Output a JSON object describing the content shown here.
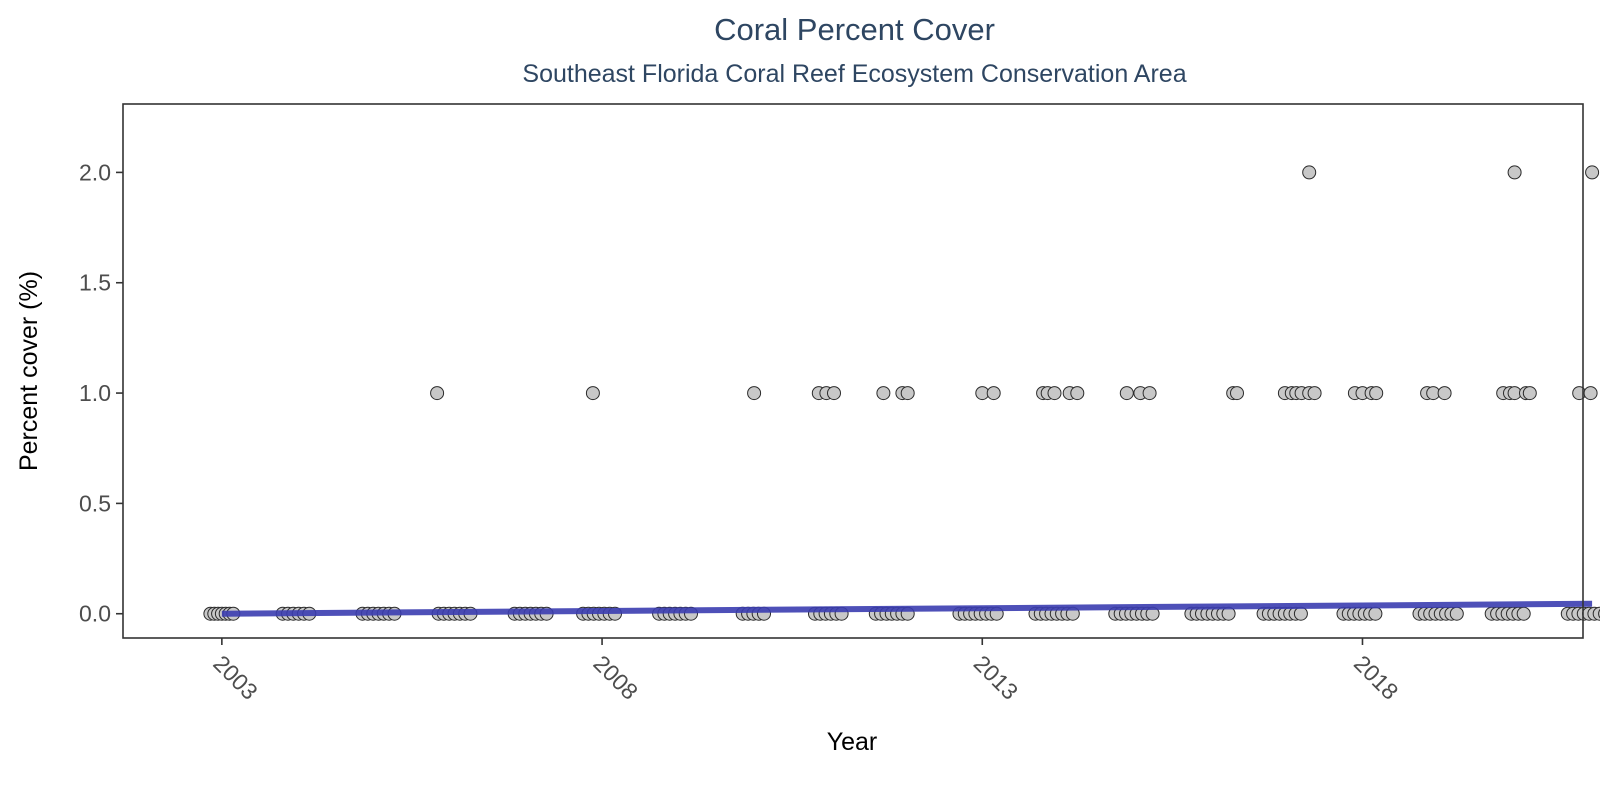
{
  "chart_data": {
    "type": "scatter",
    "title": "Coral Percent Cover",
    "subtitle": "Southeast Florida Coral Reef Ecosystem Conservation Area",
    "xlabel": "Year",
    "ylabel": "Percent cover (%)",
    "xlim": [
      2001.7,
      2020.9
    ],
    "ylim": [
      -0.11,
      2.31
    ],
    "x_ticks": [
      2003,
      2008,
      2013,
      2018
    ],
    "x_tick_labels": [
      "2003",
      "2008",
      "2013",
      "2018"
    ],
    "y_ticks": [
      0,
      0.5,
      1,
      1.5,
      2
    ],
    "y_tick_labels": [
      "0.0",
      "0.5",
      "1.0",
      "1.5",
      "2.0"
    ],
    "grid": false,
    "legend": "none",
    "point_color": "#c8c8c8",
    "point_edge_color": "#2a2a2a",
    "trend_color": "#3b3db0",
    "series": [
      {
        "values": [
          {
            "x": 2002.85,
            "y": 0
          },
          {
            "x": 2002.9,
            "y": 0
          },
          {
            "x": 2002.95,
            "y": 0
          },
          {
            "x": 2003.0,
            "y": 0
          },
          {
            "x": 2003.05,
            "y": 0
          },
          {
            "x": 2003.1,
            "y": 0
          },
          {
            "x": 2003.15,
            "y": 0
          },
          {
            "x": 2003.8,
            "y": 0
          },
          {
            "x": 2003.87,
            "y": 0
          },
          {
            "x": 2003.94,
            "y": 0
          },
          {
            "x": 2004.01,
            "y": 0
          },
          {
            "x": 2004.08,
            "y": 0
          },
          {
            "x": 2004.15,
            "y": 0
          },
          {
            "x": 2004.85,
            "y": 0
          },
          {
            "x": 2004.92,
            "y": 0
          },
          {
            "x": 2004.99,
            "y": 0
          },
          {
            "x": 2005.06,
            "y": 0
          },
          {
            "x": 2005.13,
            "y": 0
          },
          {
            "x": 2005.2,
            "y": 0
          },
          {
            "x": 2005.27,
            "y": 0
          },
          {
            "x": 2005.85,
            "y": 0
          },
          {
            "x": 2005.92,
            "y": 0
          },
          {
            "x": 2005.99,
            "y": 0
          },
          {
            "x": 2006.06,
            "y": 0
          },
          {
            "x": 2006.13,
            "y": 0
          },
          {
            "x": 2006.2,
            "y": 0
          },
          {
            "x": 2006.27,
            "y": 0
          },
          {
            "x": 2006.85,
            "y": 0
          },
          {
            "x": 2006.92,
            "y": 0
          },
          {
            "x": 2006.99,
            "y": 0
          },
          {
            "x": 2007.06,
            "y": 0
          },
          {
            "x": 2007.13,
            "y": 0
          },
          {
            "x": 2007.2,
            "y": 0
          },
          {
            "x": 2007.27,
            "y": 0
          },
          {
            "x": 2007.75,
            "y": 0
          },
          {
            "x": 2007.82,
            "y": 0
          },
          {
            "x": 2007.89,
            "y": 0
          },
          {
            "x": 2007.96,
            "y": 0
          },
          {
            "x": 2008.03,
            "y": 0
          },
          {
            "x": 2008.1,
            "y": 0
          },
          {
            "x": 2008.17,
            "y": 0
          },
          {
            "x": 2008.75,
            "y": 0
          },
          {
            "x": 2008.82,
            "y": 0
          },
          {
            "x": 2008.89,
            "y": 0
          },
          {
            "x": 2008.96,
            "y": 0
          },
          {
            "x": 2009.03,
            "y": 0
          },
          {
            "x": 2009.1,
            "y": 0
          },
          {
            "x": 2009.17,
            "y": 0
          },
          {
            "x": 2009.85,
            "y": 0
          },
          {
            "x": 2009.92,
            "y": 0
          },
          {
            "x": 2009.99,
            "y": 0
          },
          {
            "x": 2010.06,
            "y": 0
          },
          {
            "x": 2010.13,
            "y": 0
          },
          {
            "x": 2010.8,
            "y": 0
          },
          {
            "x": 2010.87,
            "y": 0
          },
          {
            "x": 2010.94,
            "y": 0
          },
          {
            "x": 2011.01,
            "y": 0
          },
          {
            "x": 2011.08,
            "y": 0
          },
          {
            "x": 2011.15,
            "y": 0
          },
          {
            "x": 2011.6,
            "y": 0
          },
          {
            "x": 2011.67,
            "y": 0
          },
          {
            "x": 2011.74,
            "y": 0
          },
          {
            "x": 2011.81,
            "y": 0
          },
          {
            "x": 2011.88,
            "y": 0
          },
          {
            "x": 2011.95,
            "y": 0
          },
          {
            "x": 2012.02,
            "y": 0
          },
          {
            "x": 2012.7,
            "y": 0
          },
          {
            "x": 2012.77,
            "y": 0
          },
          {
            "x": 2012.84,
            "y": 0
          },
          {
            "x": 2012.91,
            "y": 0
          },
          {
            "x": 2012.98,
            "y": 0
          },
          {
            "x": 2013.05,
            "y": 0
          },
          {
            "x": 2013.12,
            "y": 0
          },
          {
            "x": 2013.19,
            "y": 0
          },
          {
            "x": 2013.7,
            "y": 0
          },
          {
            "x": 2013.77,
            "y": 0
          },
          {
            "x": 2013.84,
            "y": 0
          },
          {
            "x": 2013.91,
            "y": 0
          },
          {
            "x": 2013.98,
            "y": 0
          },
          {
            "x": 2014.05,
            "y": 0
          },
          {
            "x": 2014.12,
            "y": 0
          },
          {
            "x": 2014.19,
            "y": 0
          },
          {
            "x": 2014.75,
            "y": 0
          },
          {
            "x": 2014.82,
            "y": 0
          },
          {
            "x": 2014.89,
            "y": 0
          },
          {
            "x": 2014.96,
            "y": 0
          },
          {
            "x": 2015.03,
            "y": 0
          },
          {
            "x": 2015.1,
            "y": 0
          },
          {
            "x": 2015.17,
            "y": 0
          },
          {
            "x": 2015.24,
            "y": 0
          },
          {
            "x": 2015.75,
            "y": 0
          },
          {
            "x": 2015.82,
            "y": 0
          },
          {
            "x": 2015.89,
            "y": 0
          },
          {
            "x": 2015.96,
            "y": 0
          },
          {
            "x": 2016.03,
            "y": 0
          },
          {
            "x": 2016.1,
            "y": 0
          },
          {
            "x": 2016.17,
            "y": 0
          },
          {
            "x": 2016.24,
            "y": 0
          },
          {
            "x": 2016.7,
            "y": 0
          },
          {
            "x": 2016.77,
            "y": 0
          },
          {
            "x": 2016.84,
            "y": 0
          },
          {
            "x": 2016.91,
            "y": 0
          },
          {
            "x": 2016.98,
            "y": 0
          },
          {
            "x": 2017.05,
            "y": 0
          },
          {
            "x": 2017.12,
            "y": 0
          },
          {
            "x": 2017.19,
            "y": 0
          },
          {
            "x": 2017.75,
            "y": 0
          },
          {
            "x": 2017.82,
            "y": 0
          },
          {
            "x": 2017.89,
            "y": 0
          },
          {
            "x": 2017.96,
            "y": 0
          },
          {
            "x": 2018.03,
            "y": 0
          },
          {
            "x": 2018.1,
            "y": 0
          },
          {
            "x": 2018.17,
            "y": 0
          },
          {
            "x": 2018.75,
            "y": 0
          },
          {
            "x": 2018.82,
            "y": 0
          },
          {
            "x": 2018.89,
            "y": 0
          },
          {
            "x": 2018.96,
            "y": 0
          },
          {
            "x": 2019.03,
            "y": 0
          },
          {
            "x": 2019.1,
            "y": 0
          },
          {
            "x": 2019.17,
            "y": 0
          },
          {
            "x": 2019.24,
            "y": 0
          },
          {
            "x": 2019.7,
            "y": 0
          },
          {
            "x": 2019.77,
            "y": 0
          },
          {
            "x": 2019.84,
            "y": 0
          },
          {
            "x": 2019.91,
            "y": 0
          },
          {
            "x": 2019.98,
            "y": 0
          },
          {
            "x": 2020.05,
            "y": 0
          },
          {
            "x": 2020.12,
            "y": 0
          },
          {
            "x": 2020.7,
            "y": 0
          },
          {
            "x": 2020.77,
            "y": 0
          },
          {
            "x": 2020.84,
            "y": 0
          },
          {
            "x": 2020.91,
            "y": 0
          },
          {
            "x": 2020.98,
            "y": 0
          },
          {
            "x": 2021.05,
            "y": 0
          },
          {
            "x": 2021.12,
            "y": 0
          },
          {
            "x": 2021.19,
            "y": 0
          },
          {
            "x": 2021.26,
            "y": 0
          },
          {
            "x": 2005.83,
            "y": 1
          },
          {
            "x": 2007.88,
            "y": 1
          },
          {
            "x": 2010.0,
            "y": 1
          },
          {
            "x": 2010.85,
            "y": 1
          },
          {
            "x": 2010.95,
            "y": 1
          },
          {
            "x": 2011.05,
            "y": 1
          },
          {
            "x": 2011.7,
            "y": 1
          },
          {
            "x": 2011.95,
            "y": 1
          },
          {
            "x": 2012.02,
            "y": 1
          },
          {
            "x": 2013.0,
            "y": 1
          },
          {
            "x": 2013.15,
            "y": 1
          },
          {
            "x": 2013.8,
            "y": 1
          },
          {
            "x": 2013.86,
            "y": 1
          },
          {
            "x": 2013.95,
            "y": 1
          },
          {
            "x": 2014.15,
            "y": 1
          },
          {
            "x": 2014.25,
            "y": 1
          },
          {
            "x": 2014.9,
            "y": 1
          },
          {
            "x": 2015.08,
            "y": 1
          },
          {
            "x": 2015.2,
            "y": 1
          },
          {
            "x": 2016.3,
            "y": 1
          },
          {
            "x": 2016.35,
            "y": 1
          },
          {
            "x": 2016.98,
            "y": 1
          },
          {
            "x": 2017.07,
            "y": 1
          },
          {
            "x": 2017.13,
            "y": 1
          },
          {
            "x": 2017.2,
            "y": 1
          },
          {
            "x": 2017.3,
            "y": 1
          },
          {
            "x": 2017.37,
            "y": 1
          },
          {
            "x": 2017.9,
            "y": 1
          },
          {
            "x": 2018.0,
            "y": 1
          },
          {
            "x": 2018.12,
            "y": 1
          },
          {
            "x": 2018.18,
            "y": 1
          },
          {
            "x": 2018.85,
            "y": 1
          },
          {
            "x": 2018.93,
            "y": 1
          },
          {
            "x": 2019.08,
            "y": 1
          },
          {
            "x": 2019.85,
            "y": 1
          },
          {
            "x": 2019.94,
            "y": 1
          },
          {
            "x": 2020.0,
            "y": 1
          },
          {
            "x": 2020.15,
            "y": 1
          },
          {
            "x": 2020.2,
            "y": 1
          },
          {
            "x": 2020.85,
            "y": 1
          },
          {
            "x": 2021.0,
            "y": 1
          },
          {
            "x": 2017.3,
            "y": 2
          },
          {
            "x": 2020.0,
            "y": 2
          },
          {
            "x": 2021.02,
            "y": 2
          }
        ]
      }
    ],
    "trend_line": [
      {
        "x": 2003.0,
        "y": 0.0
      },
      {
        "x": 2021.02,
        "y": 0.045
      }
    ]
  }
}
